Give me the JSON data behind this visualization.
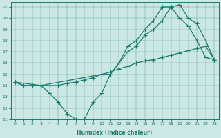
{
  "xlabel": "Humidex (Indice chaleur)",
  "bg_color": "#cce8e4",
  "line_color": "#1a7a6e",
  "xlim": [
    -0.5,
    23.5
  ],
  "ylim": [
    11,
    21.4
  ],
  "xticks": [
    0,
    1,
    2,
    3,
    4,
    5,
    6,
    7,
    8,
    9,
    10,
    11,
    12,
    13,
    14,
    15,
    16,
    17,
    18,
    19,
    20,
    21,
    22,
    23
  ],
  "yticks": [
    11,
    12,
    13,
    14,
    15,
    16,
    17,
    18,
    19,
    20,
    21
  ],
  "line1_x": [
    0,
    1,
    2,
    3,
    4,
    5,
    6,
    7,
    8,
    9,
    10,
    11,
    12,
    13,
    14,
    15,
    16,
    17,
    18,
    19,
    20,
    21,
    22,
    23
  ],
  "line1_y": [
    14.3,
    14.0,
    14.0,
    14.0,
    13.3,
    12.5,
    11.5,
    11.0,
    11.0,
    12.5,
    13.3,
    15.0,
    16.0,
    17.5,
    18.0,
    19.0,
    19.8,
    21.0,
    21.0,
    20.0,
    19.3,
    18.0,
    16.5,
    16.3
  ],
  "line2_x": [
    0,
    3,
    10,
    11,
    12,
    13,
    14,
    15,
    16,
    17,
    18,
    19,
    20,
    21,
    22,
    23
  ],
  "line2_y": [
    14.3,
    14.0,
    15.0,
    15.0,
    16.0,
    17.0,
    17.5,
    18.5,
    19.0,
    19.8,
    21.0,
    21.2,
    20.0,
    19.5,
    18.0,
    16.3
  ],
  "line3_x": [
    0,
    1,
    2,
    3,
    4,
    5,
    6,
    7,
    8,
    9,
    10,
    11,
    12,
    13,
    14,
    15,
    16,
    17,
    18,
    19,
    20,
    21,
    22,
    23
  ],
  "line3_y": [
    14.3,
    14.0,
    14.0,
    14.0,
    14.0,
    14.0,
    14.2,
    14.3,
    14.5,
    14.7,
    15.0,
    15.2,
    15.5,
    15.7,
    16.0,
    16.2,
    16.3,
    16.5,
    16.7,
    16.9,
    17.1,
    17.3,
    17.5,
    16.3
  ]
}
